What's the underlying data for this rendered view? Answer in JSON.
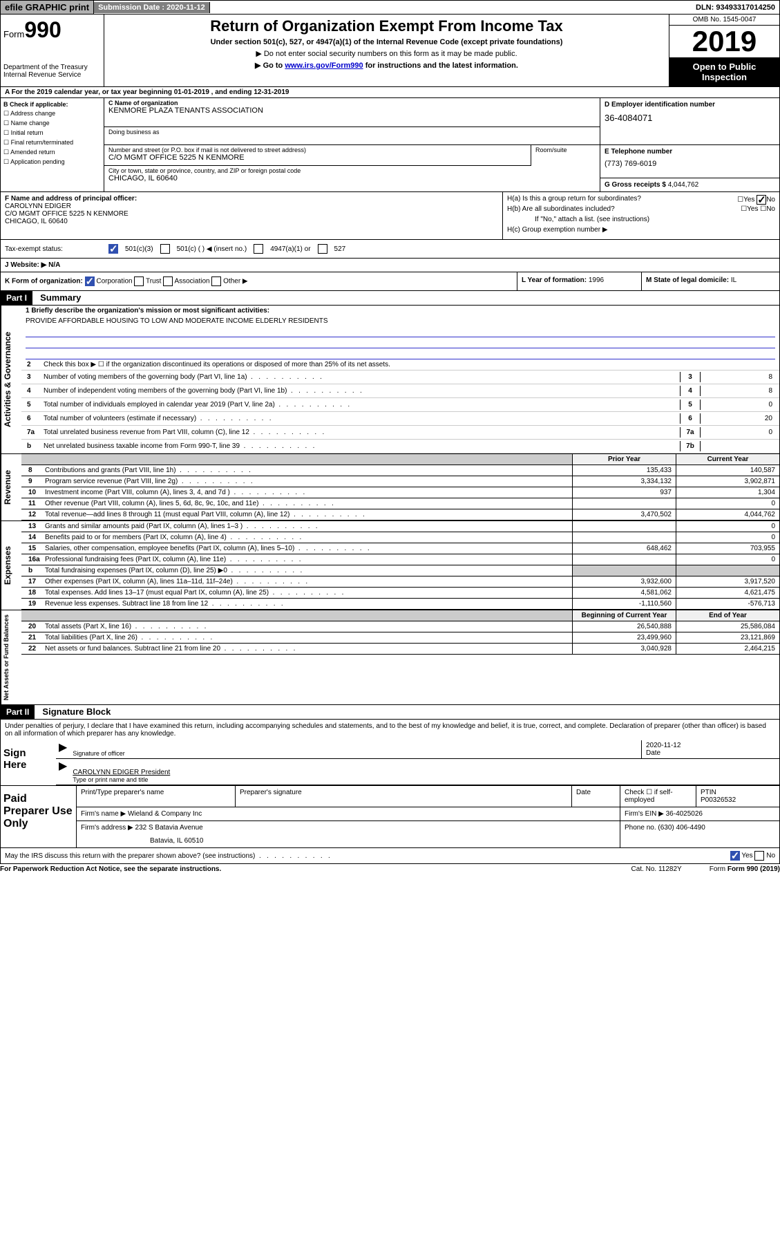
{
  "topbar": {
    "efile": "efile GRAPHIC print",
    "submission_label": "Submission Date : 2020-11-12",
    "dln": "DLN: 93493317014250"
  },
  "header": {
    "form_label": "Form",
    "form_num": "990",
    "dept1": "Department of the Treasury",
    "dept2": "Internal Revenue Service",
    "title": "Return of Organization Exempt From Income Tax",
    "subtitle": "Under section 501(c), 527, or 4947(a)(1) of the Internal Revenue Code (except private foundations)",
    "note1": "▶ Do not enter social security numbers on this form as it may be made public.",
    "note2_pre": "▶ Go to ",
    "note2_link": "www.irs.gov/Form990",
    "note2_post": " for instructions and the latest information.",
    "omb": "OMB No. 1545-0047",
    "year": "2019",
    "open": "Open to Public Inspection"
  },
  "period": "A   For the 2019 calendar year, or tax year beginning 01-01-2019    , and ending 12-31-2019",
  "blockB": {
    "title": "B Check if applicable:",
    "opts": [
      "Address change",
      "Name change",
      "Initial return",
      "Final return/terminated",
      "Amended return",
      "Application pending"
    ]
  },
  "blockC": {
    "name_lbl": "C Name of organization",
    "name": "KENMORE PLAZA TENANTS ASSOCIATION",
    "dba_lbl": "Doing business as",
    "addr_lbl": "Number and street (or P.O. box if mail is not delivered to street address)",
    "addr": "C/O MGMT OFFICE 5225 N KENMORE",
    "room_lbl": "Room/suite",
    "city_lbl": "City or town, state or province, country, and ZIP or foreign postal code",
    "city": "CHICAGO, IL  60640"
  },
  "blockD": {
    "lbl": "D Employer identification number",
    "val": "36-4084071"
  },
  "blockE": {
    "lbl": "E Telephone number",
    "val": "(773) 769-6019"
  },
  "blockG": {
    "lbl": "G Gross receipts $",
    "val": "4,044,762"
  },
  "blockF": {
    "lbl": "F  Name and address of principal officer:",
    "name": "CAROLYNN EDIGER",
    "addr1": "C/O MGMT OFFICE 5225 N KENMORE",
    "addr2": "CHICAGO, IL  60640"
  },
  "blockH": {
    "a": "H(a)  Is this a group return for subordinates?",
    "b": "H(b)  Are all subordinates included?",
    "note": "If \"No,\" attach a list. (see instructions)",
    "c": "H(c)  Group exemption number ▶"
  },
  "taxStatus": {
    "lbl": "Tax-exempt status:",
    "o1": "501(c)(3)",
    "o2": "501(c) (  ) ◀ (insert no.)",
    "o3": "4947(a)(1) or",
    "o4": "527"
  },
  "website": {
    "lbl": "J   Website: ▶",
    "val": "N/A"
  },
  "blockK": {
    "lbl": "K Form of organization:",
    "corp": "Corporation",
    "trust": "Trust",
    "assoc": "Association",
    "other": "Other ▶"
  },
  "blockL": {
    "lbl": "L Year of formation:",
    "val": "1996"
  },
  "blockM": {
    "lbl": "M State of legal domicile:",
    "val": "IL"
  },
  "part1": {
    "hdr": "Part I",
    "title": "Summary"
  },
  "summary": {
    "governance_label": "Activities & Governance",
    "revenue_label": "Revenue",
    "expenses_label": "Expenses",
    "netassets_label": "Net Assets or Fund Balances",
    "line1_lbl": "1  Briefly describe the organization's mission or most significant activities:",
    "line1_val": "PROVIDE AFFORDABLE HOUSING TO LOW AND MODERATE INCOME ELDERLY RESIDENTS",
    "line2": "Check this box ▶ ☐  if the organization discontinued its operations or disposed of more than 25% of its net assets.",
    "gov_lines": [
      {
        "n": "3",
        "t": "Number of voting members of the governing body (Part VI, line 1a)",
        "box": "3",
        "v": "8"
      },
      {
        "n": "4",
        "t": "Number of independent voting members of the governing body (Part VI, line 1b)",
        "box": "4",
        "v": "8"
      },
      {
        "n": "5",
        "t": "Total number of individuals employed in calendar year 2019 (Part V, line 2a)",
        "box": "5",
        "v": "0"
      },
      {
        "n": "6",
        "t": "Total number of volunteers (estimate if necessary)",
        "box": "6",
        "v": "20"
      },
      {
        "n": "7a",
        "t": "Total unrelated business revenue from Part VIII, column (C), line 12",
        "box": "7a",
        "v": "0"
      },
      {
        "n": "b",
        "t": "Net unrelated business taxable income from Form 990-T, line 39",
        "box": "7b",
        "v": ""
      }
    ],
    "col_hdr_prior": "Prior Year",
    "col_hdr_curr": "Current Year",
    "col_hdr_begin": "Beginning of Current Year",
    "col_hdr_end": "End of Year",
    "rev_lines": [
      {
        "n": "8",
        "t": "Contributions and grants (Part VIII, line 1h)",
        "p": "135,433",
        "c": "140,587"
      },
      {
        "n": "9",
        "t": "Program service revenue (Part VIII, line 2g)",
        "p": "3,334,132",
        "c": "3,902,871"
      },
      {
        "n": "10",
        "t": "Investment income (Part VIII, column (A), lines 3, 4, and 7d )",
        "p": "937",
        "c": "1,304"
      },
      {
        "n": "11",
        "t": "Other revenue (Part VIII, column (A), lines 5, 6d, 8c, 9c, 10c, and 11e)",
        "p": "",
        "c": "0"
      },
      {
        "n": "12",
        "t": "Total revenue—add lines 8 through 11 (must equal Part VIII, column (A), line 12)",
        "p": "3,470,502",
        "c": "4,044,762"
      }
    ],
    "exp_lines": [
      {
        "n": "13",
        "t": "Grants and similar amounts paid (Part IX, column (A), lines 1–3 )",
        "p": "",
        "c": "0"
      },
      {
        "n": "14",
        "t": "Benefits paid to or for members (Part IX, column (A), line 4)",
        "p": "",
        "c": "0"
      },
      {
        "n": "15",
        "t": "Salaries, other compensation, employee benefits (Part IX, column (A), lines 5–10)",
        "p": "648,462",
        "c": "703,955"
      },
      {
        "n": "16a",
        "t": "Professional fundraising fees (Part IX, column (A), line 11e)",
        "p": "",
        "c": "0"
      },
      {
        "n": "b",
        "t": "Total fundraising expenses (Part IX, column (D), line 25) ▶0",
        "p": "GREY",
        "c": "GREY"
      },
      {
        "n": "17",
        "t": "Other expenses (Part IX, column (A), lines 11a–11d, 11f–24e)",
        "p": "3,932,600",
        "c": "3,917,520"
      },
      {
        "n": "18",
        "t": "Total expenses. Add lines 13–17 (must equal Part IX, column (A), line 25)",
        "p": "4,581,062",
        "c": "4,621,475"
      },
      {
        "n": "19",
        "t": "Revenue less expenses. Subtract line 18 from line 12",
        "p": "-1,110,560",
        "c": "-576,713"
      }
    ],
    "net_lines": [
      {
        "n": "20",
        "t": "Total assets (Part X, line 16)",
        "p": "26,540,888",
        "c": "25,586,084"
      },
      {
        "n": "21",
        "t": "Total liabilities (Part X, line 26)",
        "p": "23,499,960",
        "c": "23,121,869"
      },
      {
        "n": "22",
        "t": "Net assets or fund balances. Subtract line 21 from line 20",
        "p": "3,040,928",
        "c": "2,464,215"
      }
    ]
  },
  "part2": {
    "hdr": "Part II",
    "title": "Signature Block"
  },
  "sig": {
    "decl": "Under penalties of perjury, I declare that I have examined this return, including accompanying schedules and statements, and to the best of my knowledge and belief, it is true, correct, and complete. Declaration of preparer (other than officer) is based on all information of which preparer has any knowledge.",
    "sign_here": "Sign Here",
    "sig_officer": "Signature of officer",
    "date_lbl": "Date",
    "date_val": "2020-11-12",
    "name_title": "CAROLYNN EDIGER  President",
    "type_name": "Type or print name and title"
  },
  "paid": {
    "label": "Paid Preparer Use Only",
    "print_lbl": "Print/Type preparer's name",
    "sig_lbl": "Preparer's signature",
    "date_lbl": "Date",
    "check_lbl": "Check ☐ if self-employed",
    "ptin_lbl": "PTIN",
    "ptin": "P00326532",
    "firm_name_lbl": "Firm's name    ▶",
    "firm_name": "Wieland & Company Inc",
    "firm_ein_lbl": "Firm's EIN ▶",
    "firm_ein": "36-4025026",
    "firm_addr_lbl": "Firm's address ▶",
    "firm_addr1": "232 S Batavia Avenue",
    "firm_addr2": "Batavia, IL  60510",
    "phone_lbl": "Phone no.",
    "phone": "(630) 406-4490"
  },
  "discuss": "May the IRS discuss this return with the preparer shown above? (see instructions)",
  "footer": {
    "left": "For Paperwork Reduction Act Notice, see the separate instructions.",
    "mid": "Cat. No. 11282Y",
    "right": "Form 990 (2019)"
  }
}
